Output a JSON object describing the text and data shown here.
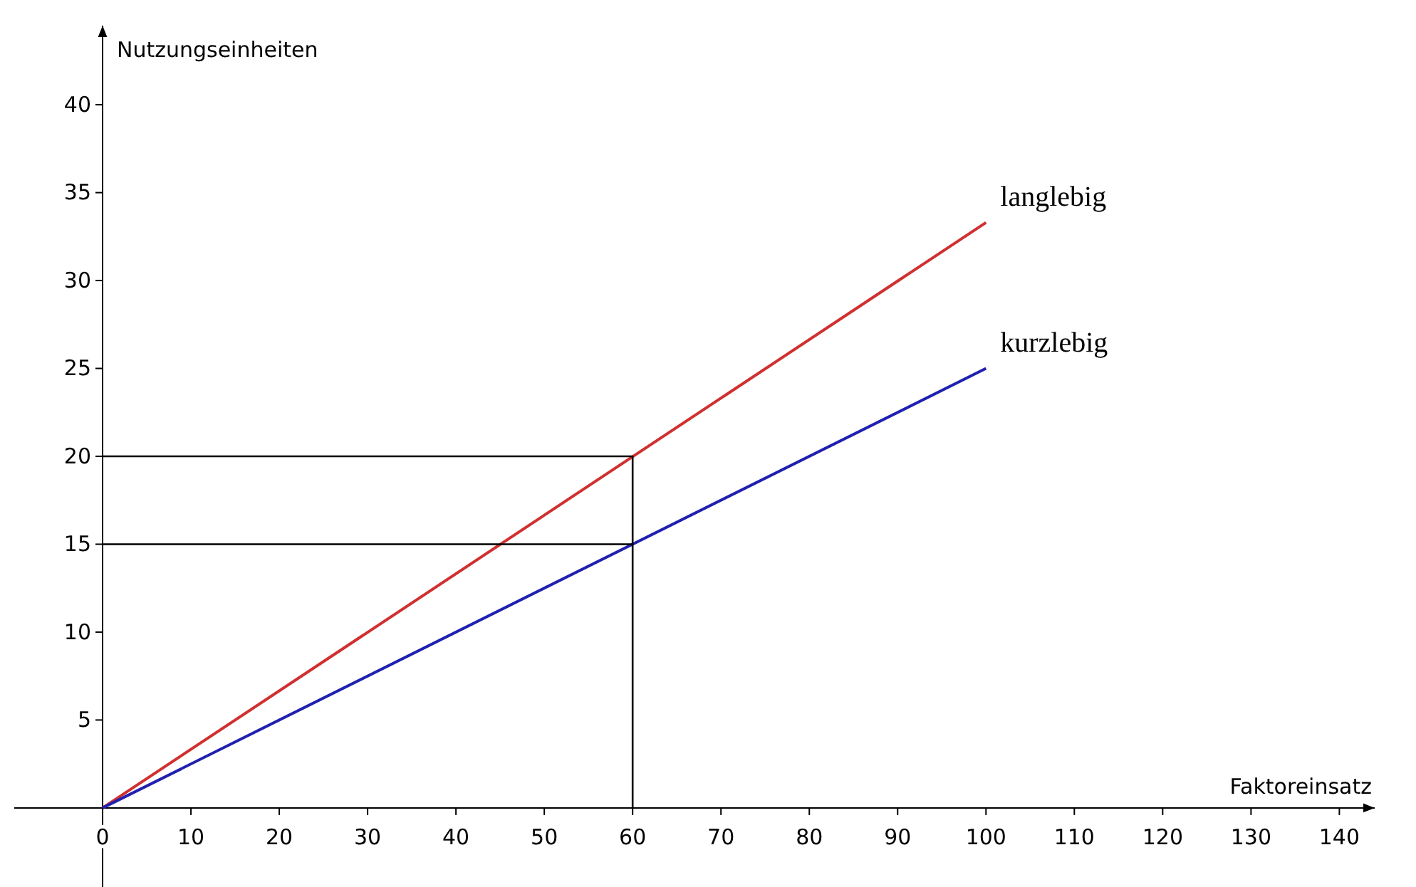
{
  "chart_data": {
    "type": "line",
    "xlabel": "Faktoreinsatz",
    "ylabel": "Nutzungseinheiten",
    "xlim": [
      -10,
      144
    ],
    "ylim": [
      -4.5,
      44.5
    ],
    "xticks": [
      0,
      10,
      20,
      30,
      40,
      50,
      60,
      70,
      80,
      90,
      100,
      110,
      120,
      130,
      140
    ],
    "yticks": [
      5,
      10,
      15,
      20,
      25,
      30,
      35,
      40
    ],
    "grid": false,
    "legend": false,
    "marker": "none",
    "line_style": "solid",
    "series": [
      {
        "name": "langlebig",
        "color": "#d03030",
        "x": [
          0,
          100
        ],
        "values": [
          0,
          33.3
        ]
      },
      {
        "name": "kurzlebig",
        "color": "#2020b0",
        "x": [
          0,
          100
        ],
        "values": [
          0,
          25
        ]
      },
      {
        "color": "#000000",
        "x": [
          0,
          60,
          60
        ],
        "values": [
          20,
          20,
          0
        ]
      },
      {
        "color": "#000000",
        "x": [
          0,
          60
        ],
        "values": [
          15,
          15
        ]
      }
    ]
  }
}
